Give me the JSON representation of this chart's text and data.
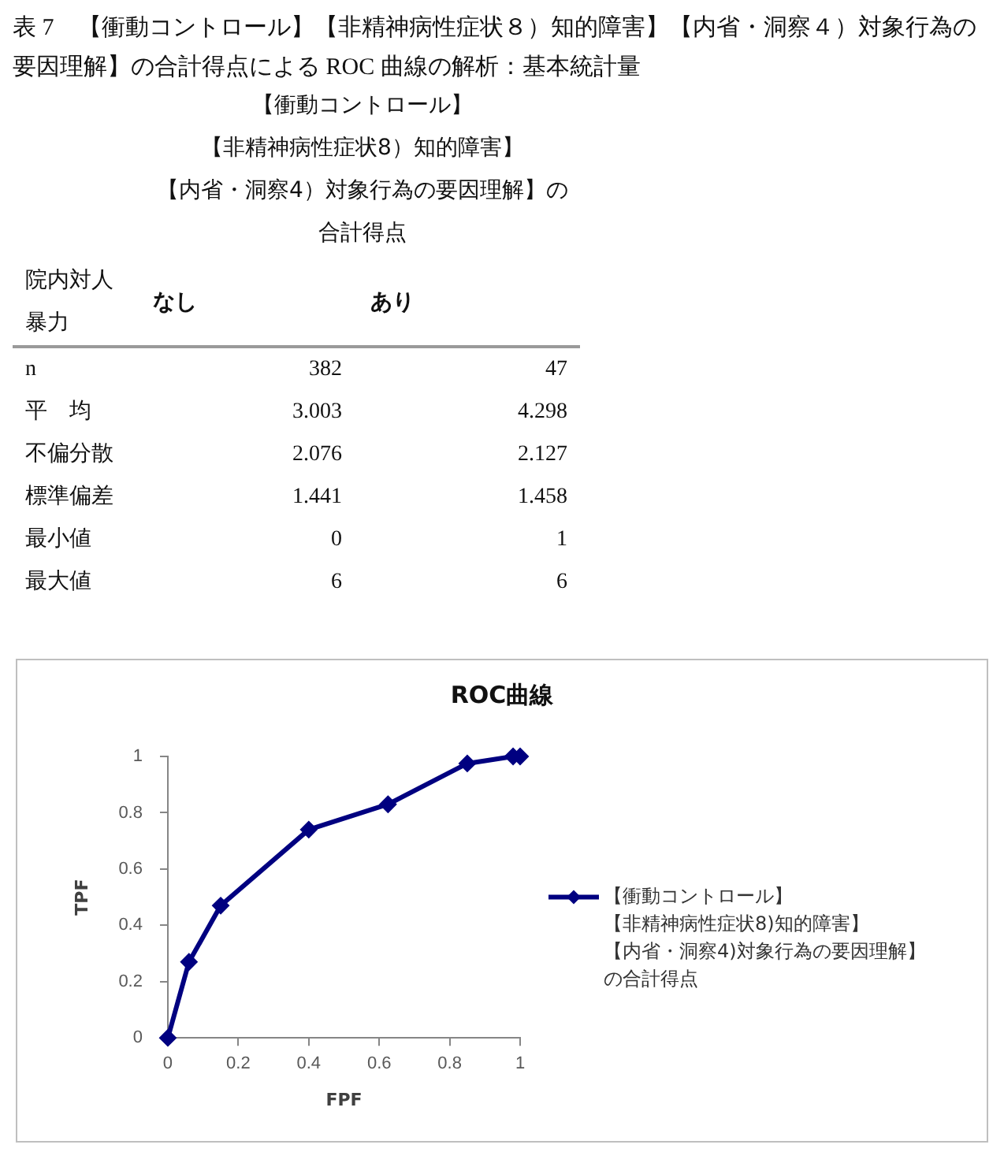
{
  "chart_data": [
    {
      "type": "other",
      "title": "表 7　【衝動コントロール】【非精神病性症状８）知的障害】【内省・洞察４）対象行為の要因理解】の合計得点による ROC 曲線の解析：基本統計量",
      "subtitle": "【衝動コントロール】【非精神病性症状8）知的障害】【内省・洞察4）対象行為の要因理解】の合計得点",
      "legend_title": "院内対人暴力",
      "categories": [
        "n",
        "平　均",
        "不偏分散",
        "標準偏差",
        "最小値",
        "最大値"
      ],
      "series": [
        {
          "name": "なし",
          "values": [
            382,
            3.003,
            2.076,
            1.441,
            0,
            6
          ]
        },
        {
          "name": "あり",
          "values": [
            47,
            4.298,
            2.127,
            1.458,
            1,
            6
          ]
        }
      ],
      "data_labels": true
    },
    {
      "type": "line",
      "title": "ROC曲線",
      "xlabel": "FPF",
      "ylabel": "TPF",
      "xlim": [
        0,
        1
      ],
      "ylim": [
        0,
        1
      ],
      "xticks": [
        0,
        0.2,
        0.4,
        0.6,
        0.8,
        1
      ],
      "yticks": [
        0,
        0.2,
        0.4,
        0.6,
        0.8,
        1
      ],
      "series": [
        {
          "name": "【衝動コントロール】【非精神病性症状8)知的障害】【内省・洞察4)対象行為の要因理解】の合計得点",
          "color": "#000080",
          "x": [
            0,
            0.06,
            0.15,
            0.4,
            0.625,
            0.85,
            0.98,
            1
          ],
          "values": [
            0,
            0.27,
            0.47,
            0.74,
            0.83,
            0.975,
            1,
            1
          ]
        }
      ],
      "marker": "diamond",
      "legend": "right"
    }
  ]
}
